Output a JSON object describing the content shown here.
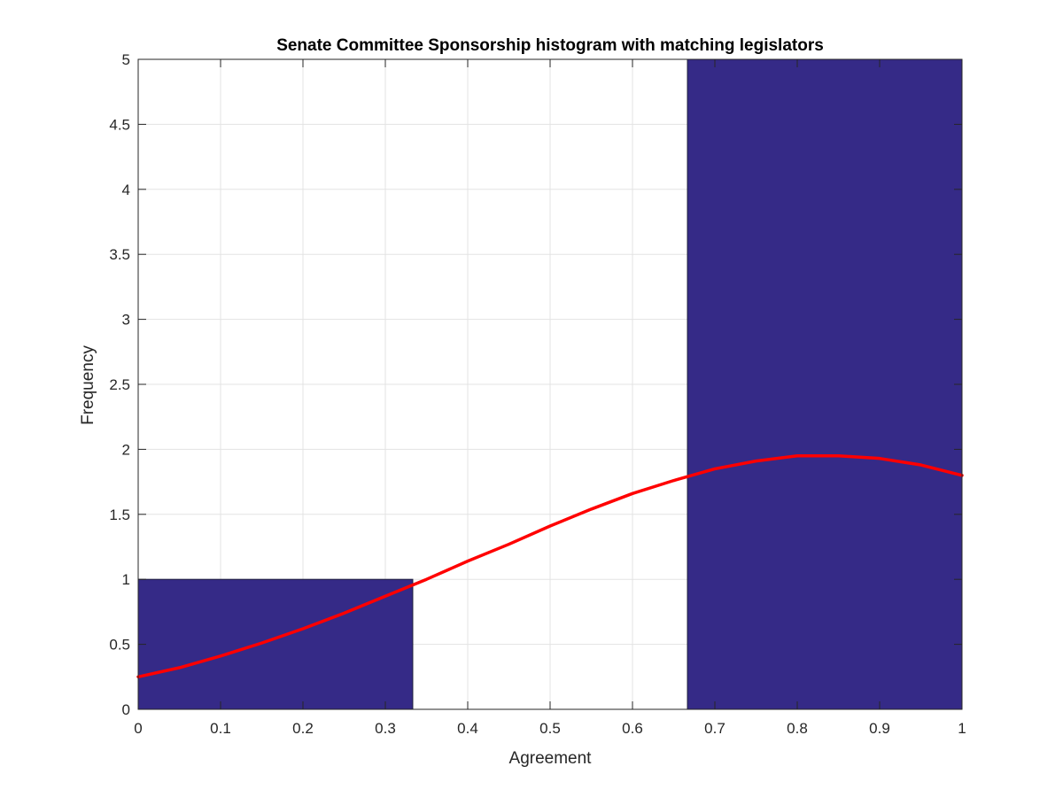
{
  "chart_data": {
    "type": "bar",
    "title": "Senate Committee Sponsorship histogram with matching legislators",
    "xlabel": "Agreement",
    "ylabel": "Frequency",
    "xlim": [
      0,
      1
    ],
    "ylim": [
      0,
      5
    ],
    "xticks": [
      "0",
      "0.1",
      "0.2",
      "0.3",
      "0.4",
      "0.5",
      "0.6",
      "0.7",
      "0.8",
      "0.9",
      "1"
    ],
    "yticks": [
      "0",
      "0.5",
      "1",
      "1.5",
      "2",
      "2.5",
      "3",
      "3.5",
      "4",
      "4.5",
      "5"
    ],
    "grid": true,
    "bins": [
      {
        "start": 0,
        "end": 0.3333,
        "value": 1
      },
      {
        "start": 0.3333,
        "end": 0.6667,
        "value": 0
      },
      {
        "start": 0.6667,
        "end": 1,
        "value": 5
      }
    ],
    "fit_curve": {
      "x": [
        0,
        0.05,
        0.1,
        0.15,
        0.2,
        0.25,
        0.3,
        0.35,
        0.4,
        0.45,
        0.5,
        0.55,
        0.6,
        0.65,
        0.7,
        0.75,
        0.8,
        0.85,
        0.9,
        0.95,
        1
      ],
      "y": [
        0.25,
        0.32,
        0.41,
        0.51,
        0.62,
        0.74,
        0.87,
        1.0,
        1.14,
        1.27,
        1.41,
        1.54,
        1.66,
        1.76,
        1.85,
        1.91,
        1.95,
        1.95,
        1.93,
        1.88,
        1.8
      ]
    },
    "colors": {
      "bar_fill": "#352a87",
      "bar_edge": "#1f1f3a",
      "curve": "#ff0000",
      "grid": "#e3e3e3",
      "axis": "#262626"
    }
  }
}
